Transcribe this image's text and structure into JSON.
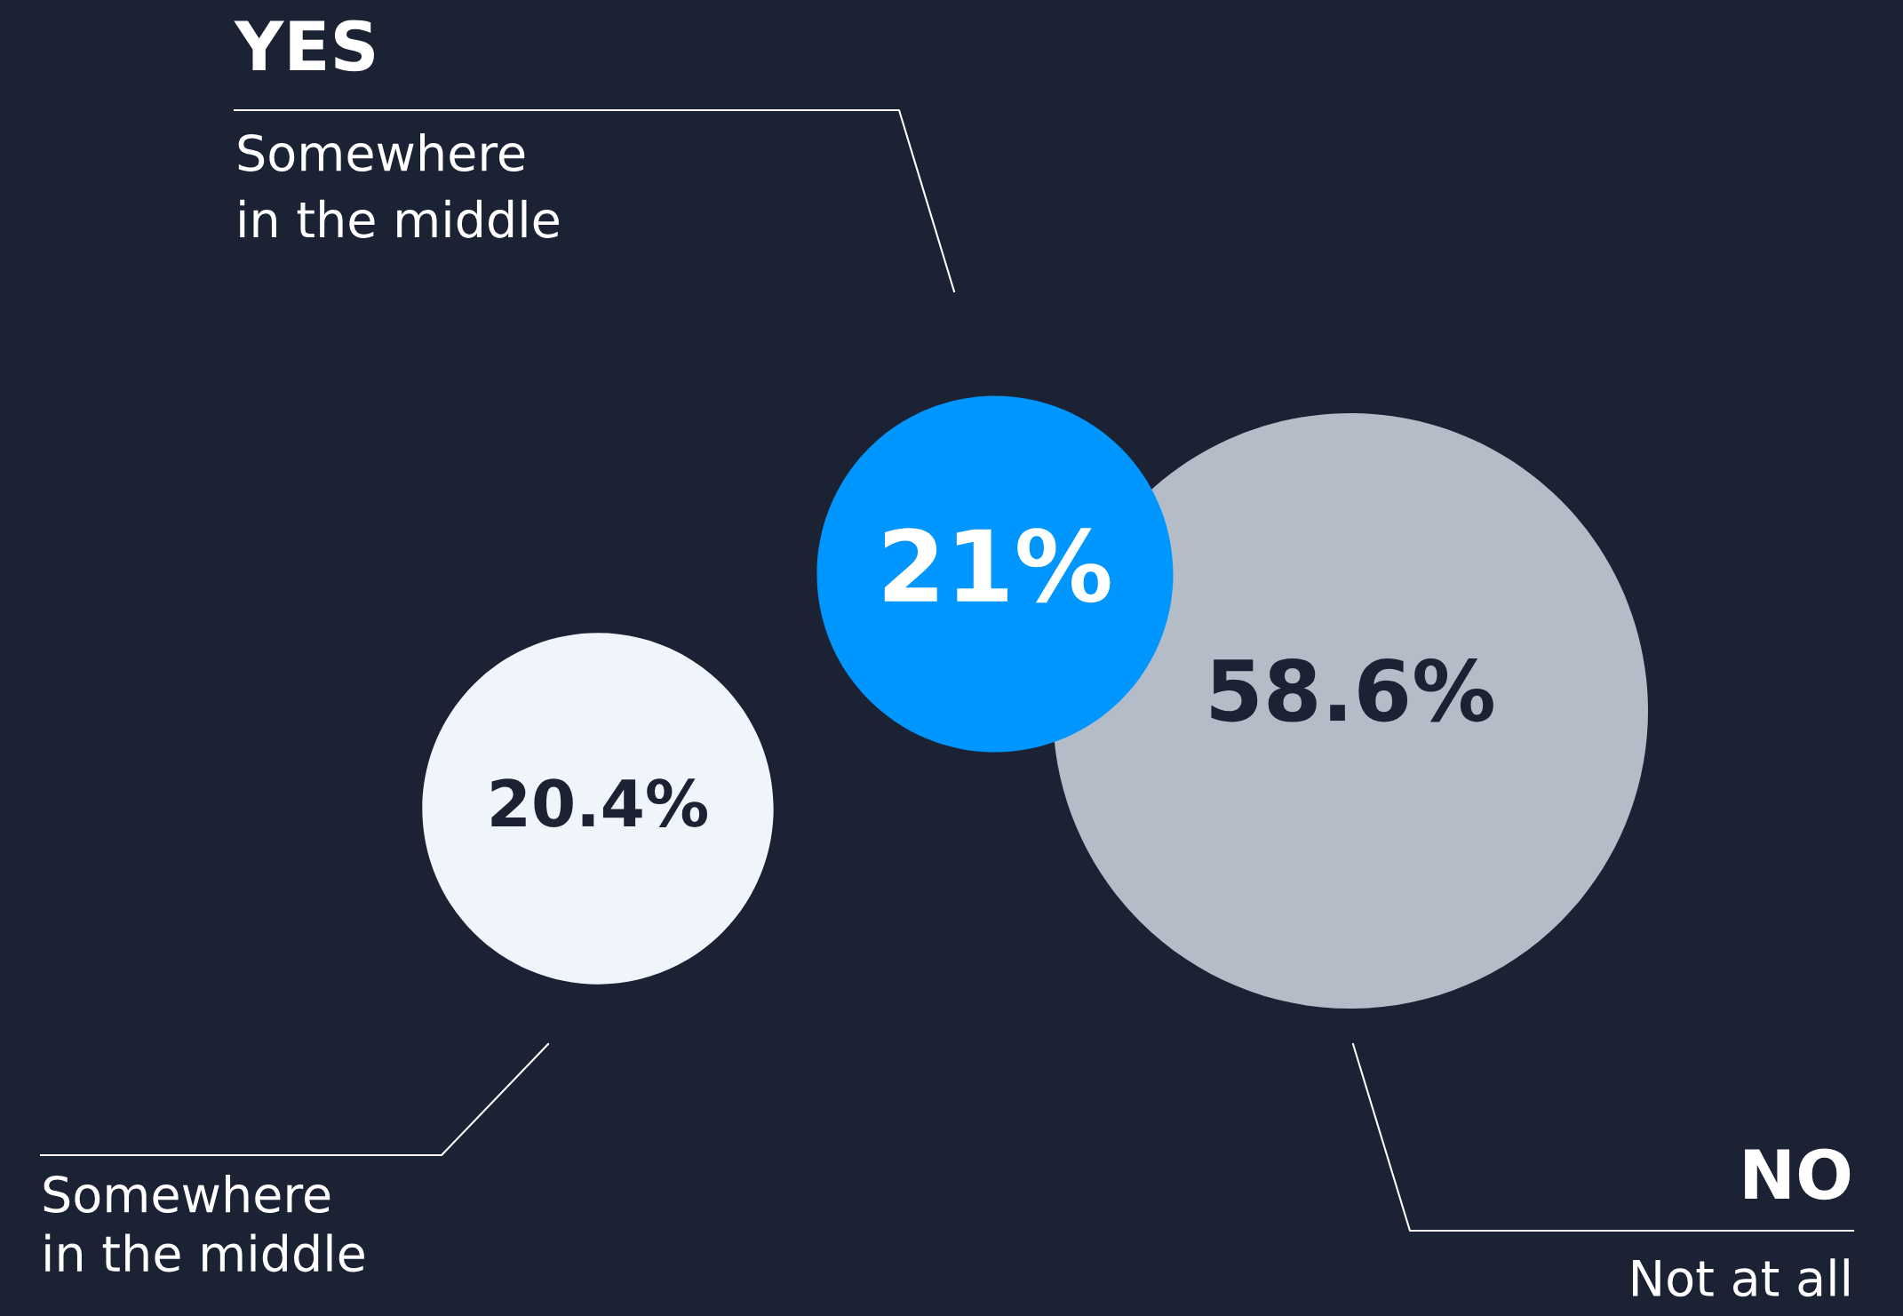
{
  "chart_data": {
    "type": "other",
    "categories": [
      "Somewhere\nin the middle",
      "Somewhere\nin the middle",
      "Not at all"
    ],
    "values": [
      21,
      20.4,
      58.6
    ],
    "colors": [
      "#0096ff",
      "#f0f4fb",
      "#b4bcc8"
    ],
    "value_labels": [
      "21%",
      "20.4%",
      "58.6%"
    ],
    "annotations": [
      "YES",
      "NO"
    ]
  }
}
